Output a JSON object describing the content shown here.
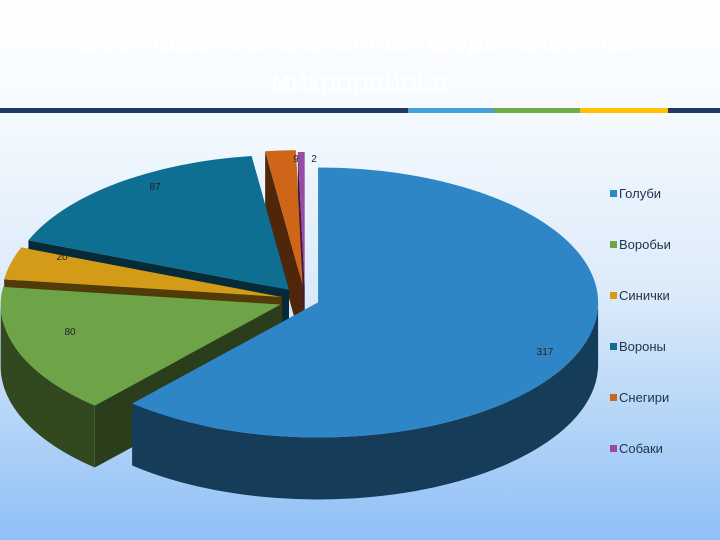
{
  "slide": {
    "title_line1": "Соотношение жизненных форм животных",
    "title_line2": "микрорайона"
  },
  "rule_colors": [
    "#203864",
    "#46a0d8",
    "#70ad47",
    "#ffc000",
    "#203864"
  ],
  "chart_data": {
    "type": "pie",
    "style": "3d-exploded",
    "title": "",
    "legend_position": "right",
    "categories": [
      "Голуби",
      "Воробьи",
      "Синички",
      "Вороны",
      "Снегири",
      "Собаки"
    ],
    "values": [
      317,
      80,
      20,
      87,
      9,
      2
    ],
    "data_labels": [
      "317",
      "80",
      "20",
      "87",
      "9",
      "2"
    ],
    "colors": [
      "#2f86c6",
      "#6fa348",
      "#d39b18",
      "#0e6f93",
      "#cf6518",
      "#9a4aa4"
    ]
  }
}
